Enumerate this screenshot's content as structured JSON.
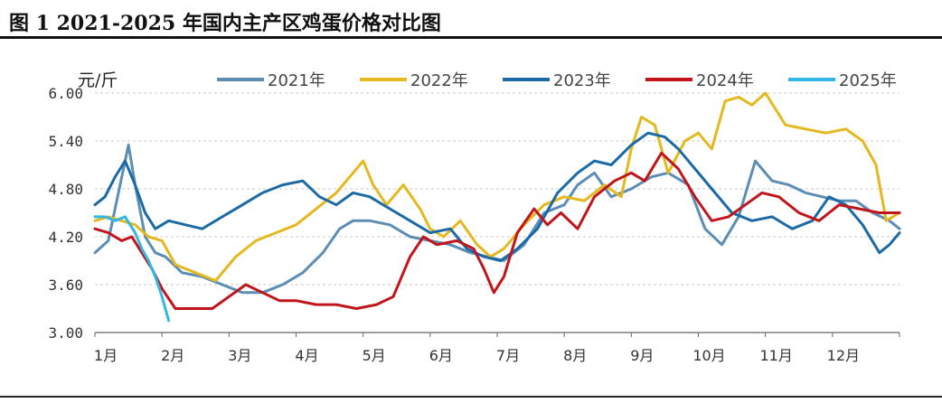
{
  "title": "图 1  2021-2025 年国内主产区鸡蛋价格对比图",
  "chart_data": {
    "type": "line",
    "unit": "元/斤",
    "ylim": [
      3.0,
      6.0
    ],
    "yticks": [
      "6.00",
      "5.40",
      "4.80",
      "4.20",
      "3.60",
      "3.00"
    ],
    "ytick_values": [
      6.0,
      5.4,
      4.8,
      4.2,
      3.6,
      3.0
    ],
    "xlim": [
      1,
      13
    ],
    "x_categories": [
      "1月",
      "2月",
      "3月",
      "4月",
      "5月",
      "6月",
      "7月",
      "8月",
      "9月",
      "10月",
      "11月",
      "12月"
    ],
    "grid": "horizontal dashed",
    "legend_position": "top",
    "series": [
      {
        "name": "2021年",
        "color": "#5b8db5",
        "x": [
          1.0,
          1.2,
          1.35,
          1.5,
          1.6,
          1.75,
          1.9,
          2.05,
          2.3,
          2.6,
          2.9,
          3.2,
          3.5,
          3.8,
          4.1,
          4.4,
          4.65,
          4.85,
          5.1,
          5.4,
          5.7,
          6.0,
          6.3,
          6.6,
          6.85,
          7.1,
          7.4,
          7.7,
          8.0,
          8.2,
          8.45,
          8.7,
          9.0,
          9.3,
          9.55,
          9.85,
          10.1,
          10.35,
          10.6,
          10.85,
          11.1,
          11.35,
          11.6,
          11.85,
          12.1,
          12.35,
          12.6,
          12.85,
          13.0
        ],
        "y": [
          4.0,
          4.15,
          4.75,
          5.35,
          4.85,
          4.2,
          4.0,
          3.95,
          3.75,
          3.7,
          3.6,
          3.5,
          3.5,
          3.6,
          3.75,
          4.0,
          4.3,
          4.4,
          4.4,
          4.35,
          4.2,
          4.15,
          4.1,
          4.0,
          3.95,
          3.9,
          4.1,
          4.5,
          4.6,
          4.85,
          5.0,
          4.7,
          4.8,
          4.95,
          5.0,
          4.85,
          4.3,
          4.1,
          4.45,
          5.15,
          4.9,
          4.85,
          4.75,
          4.7,
          4.65,
          4.65,
          4.5,
          4.4,
          4.3
        ]
      },
      {
        "name": "2022年",
        "color": "#e5b81f",
        "x": [
          1.0,
          1.2,
          1.4,
          1.6,
          1.8,
          2.0,
          2.2,
          2.5,
          2.8,
          3.1,
          3.4,
          3.7,
          4.0,
          4.3,
          4.6,
          4.8,
          5.0,
          5.15,
          5.35,
          5.6,
          5.85,
          6.0,
          6.2,
          6.45,
          6.7,
          6.9,
          7.1,
          7.4,
          7.7,
          8.0,
          8.3,
          8.6,
          8.85,
          9.0,
          9.15,
          9.35,
          9.55,
          9.8,
          10.0,
          10.2,
          10.4,
          10.6,
          10.8,
          11.0,
          11.3,
          11.6,
          11.9,
          12.2,
          12.45,
          12.65,
          12.8,
          13.0
        ],
        "y": [
          4.4,
          4.45,
          4.4,
          4.35,
          4.2,
          4.15,
          3.85,
          3.75,
          3.65,
          3.95,
          4.15,
          4.25,
          4.35,
          4.55,
          4.75,
          4.95,
          5.15,
          4.85,
          4.6,
          4.85,
          4.55,
          4.3,
          4.2,
          4.4,
          4.1,
          3.95,
          4.05,
          4.35,
          4.6,
          4.7,
          4.65,
          4.85,
          4.7,
          5.3,
          5.7,
          5.6,
          5.0,
          5.4,
          5.5,
          5.3,
          5.9,
          5.95,
          5.85,
          6.0,
          5.6,
          5.55,
          5.5,
          5.55,
          5.4,
          5.1,
          4.4,
          4.5
        ]
      },
      {
        "name": "2023年",
        "color": "#1c6aa5",
        "x": [
          1.0,
          1.15,
          1.3,
          1.45,
          1.6,
          1.75,
          1.9,
          2.1,
          2.35,
          2.6,
          2.9,
          3.2,
          3.5,
          3.8,
          4.1,
          4.35,
          4.6,
          4.85,
          5.1,
          5.4,
          5.7,
          6.0,
          6.3,
          6.55,
          6.8,
          7.05,
          7.3,
          7.6,
          7.9,
          8.2,
          8.45,
          8.7,
          9.0,
          9.25,
          9.5,
          9.7,
          9.95,
          10.2,
          10.5,
          10.8,
          11.1,
          11.4,
          11.7,
          11.95,
          12.2,
          12.45,
          12.7,
          12.85,
          13.0
        ],
        "y": [
          4.6,
          4.7,
          4.95,
          5.15,
          4.85,
          4.5,
          4.3,
          4.4,
          4.35,
          4.3,
          4.45,
          4.6,
          4.75,
          4.85,
          4.9,
          4.7,
          4.6,
          4.75,
          4.7,
          4.55,
          4.4,
          4.25,
          4.3,
          4.05,
          3.95,
          3.9,
          4.05,
          4.3,
          4.75,
          5.0,
          5.15,
          5.1,
          5.35,
          5.5,
          5.45,
          5.3,
          5.05,
          4.8,
          4.5,
          4.4,
          4.45,
          4.3,
          4.4,
          4.7,
          4.6,
          4.35,
          4.0,
          4.1,
          4.25
        ]
      },
      {
        "name": "2024年",
        "color": "#c0161b",
        "x": [
          1.0,
          1.2,
          1.4,
          1.55,
          1.7,
          1.85,
          2.0,
          2.2,
          2.5,
          2.75,
          3.0,
          3.25,
          3.5,
          3.75,
          4.0,
          4.3,
          4.6,
          4.9,
          5.2,
          5.45,
          5.7,
          5.9,
          6.1,
          6.4,
          6.65,
          6.8,
          6.95,
          7.1,
          7.3,
          7.55,
          7.75,
          7.95,
          8.2,
          8.45,
          8.75,
          9.0,
          9.2,
          9.45,
          9.7,
          9.95,
          10.2,
          10.45,
          10.7,
          10.95,
          11.2,
          11.5,
          11.8,
          12.1,
          12.4,
          12.7,
          13.0
        ],
        "y": [
          4.3,
          4.25,
          4.15,
          4.2,
          4.0,
          3.8,
          3.55,
          3.3,
          3.3,
          3.3,
          3.45,
          3.6,
          3.5,
          3.4,
          3.4,
          3.35,
          3.35,
          3.3,
          3.35,
          3.45,
          3.95,
          4.2,
          4.1,
          4.15,
          4.05,
          3.8,
          3.5,
          3.7,
          4.25,
          4.55,
          4.35,
          4.5,
          4.3,
          4.7,
          4.9,
          5.0,
          4.9,
          5.25,
          5.05,
          4.7,
          4.4,
          4.45,
          4.6,
          4.75,
          4.7,
          4.5,
          4.4,
          4.6,
          4.55,
          4.5,
          4.5
        ]
      },
      {
        "name": "2025年",
        "color": "#33b8e5",
        "x": [
          1.0,
          1.15,
          1.3,
          1.45,
          1.6,
          1.7,
          1.8,
          1.9,
          2.0,
          2.1
        ],
        "y": [
          4.45,
          4.45,
          4.4,
          4.45,
          4.25,
          4.05,
          3.9,
          3.7,
          3.45,
          3.15
        ]
      }
    ]
  }
}
